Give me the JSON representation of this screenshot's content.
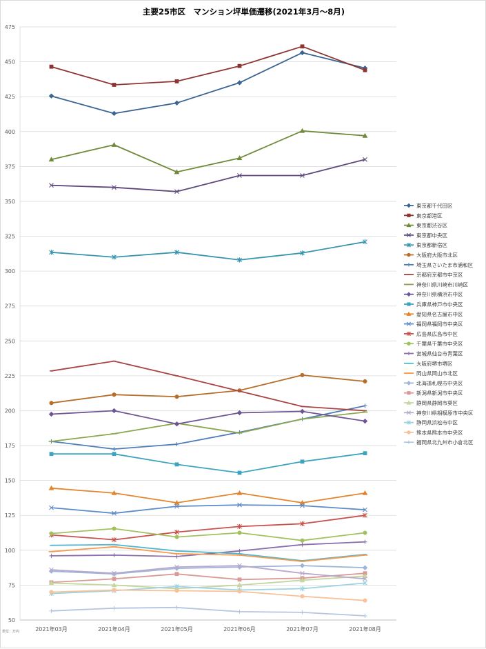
{
  "chart_data": {
    "type": "line",
    "title": "主要25市区　マンション坪単価遷移(2021年3月～8月)",
    "categories": [
      "2021年03月",
      "2021年04月",
      "2021年05月",
      "2021年06月",
      "2021年07月",
      "2021年08月"
    ],
    "xlabel": "",
    "ylabel": "",
    "ylim": [
      50,
      475
    ],
    "yticks": [
      50,
      75,
      100,
      125,
      150,
      175,
      200,
      225,
      250,
      275,
      300,
      325,
      350,
      375,
      400,
      425,
      450,
      475
    ],
    "grid": true,
    "legend_position": "right",
    "unit_note": "単位：万円",
    "series": [
      {
        "name": "東京都千代田区",
        "color": "#3B6493",
        "marker": "diamond",
        "values": [
          425.5,
          413.0,
          420.5,
          435.0,
          456.5,
          445.5
        ]
      },
      {
        "name": "東京都港区",
        "color": "#8E3532",
        "marker": "square",
        "values": [
          446.5,
          433.5,
          436.0,
          447.0,
          461.0,
          444.0
        ]
      },
      {
        "name": "東京都渋谷区",
        "color": "#6F8A3A",
        "marker": "triangle",
        "values": [
          380.0,
          390.5,
          371.0,
          381.0,
          400.5,
          397.0
        ]
      },
      {
        "name": "東京都中央区",
        "color": "#5D4A7A",
        "marker": "x",
        "values": [
          361.5,
          360.0,
          357.0,
          368.5,
          368.5,
          380.0
        ]
      },
      {
        "name": "東京都新宿区",
        "color": "#3795AD",
        "marker": "star",
        "values": [
          313.5,
          310.0,
          313.5,
          308.0,
          313.0,
          321.0
        ]
      },
      {
        "name": "大阪府大阪市北区",
        "color": "#B56F2B",
        "marker": "circle",
        "values": [
          205.5,
          211.5,
          210.0,
          214.5,
          225.5,
          221.0
        ]
      },
      {
        "name": "埼玉県さいたま市浦和区",
        "color": "#4E7DB8",
        "marker": "plus",
        "values": [
          178.0,
          172.5,
          176.0,
          184.5,
          194.0,
          203.5
        ]
      },
      {
        "name": "京都府京都市中京区",
        "color": "#A94442",
        "marker": "dash",
        "values": [
          228.5,
          235.5,
          225.0,
          214.0,
          203.0,
          200.0
        ]
      },
      {
        "name": "神奈川県川崎市川崎区",
        "color": "#8BA650",
        "marker": "longdash",
        "values": [
          178.0,
          183.5,
          191.0,
          184.0,
          194.0,
          199.0
        ]
      },
      {
        "name": "神奈川県横浜市中区",
        "color": "#6E5593",
        "marker": "diamond",
        "values": [
          197.5,
          200.0,
          190.5,
          198.5,
          199.5,
          192.5
        ]
      },
      {
        "name": "兵庫県神戸市中央区",
        "color": "#3EA4BE",
        "marker": "square",
        "values": [
          169.0,
          169.0,
          161.5,
          155.5,
          163.5,
          169.5
        ]
      },
      {
        "name": "愛知県名古屋市中区",
        "color": "#E2852E",
        "marker": "triangle",
        "values": [
          144.5,
          141.0,
          134.0,
          141.0,
          134.0,
          141.0
        ]
      },
      {
        "name": "福岡県福岡市中央区",
        "color": "#5C8ACB",
        "marker": "x",
        "values": [
          130.5,
          126.5,
          131.5,
          132.5,
          132.0,
          129.0
        ]
      },
      {
        "name": "広島県広島市中区",
        "color": "#C9504C",
        "marker": "star",
        "values": [
          111.0,
          107.5,
          113.0,
          117.0,
          119.0,
          125.0
        ]
      },
      {
        "name": "千葉県千葉市中央区",
        "color": "#A2C15E",
        "marker": "circle",
        "values": [
          112.0,
          115.5,
          109.5,
          112.5,
          107.0,
          112.5
        ]
      },
      {
        "name": "宮城県仙台市青葉区",
        "color": "#8A6EAD",
        "marker": "plus",
        "values": [
          96.0,
          96.5,
          95.5,
          99.5,
          104.0,
          106.0
        ]
      },
      {
        "name": "大阪府堺市堺区",
        "color": "#52B6CE",
        "marker": "dash",
        "values": [
          103.5,
          104.0,
          99.5,
          97.5,
          92.5,
          97.0
        ]
      },
      {
        "name": "岡山県岡山市北区",
        "color": "#F59A4E",
        "marker": "longdash",
        "values": [
          99.0,
          102.5,
          97.5,
          96.5,
          92.0,
          96.5
        ]
      },
      {
        "name": "北海道札幌市中央区",
        "color": "#9DB5D9",
        "marker": "diamond",
        "values": [
          85.0,
          83.0,
          87.0,
          88.0,
          89.0,
          87.5
        ]
      },
      {
        "name": "新潟県新潟市中央区",
        "color": "#D99A98",
        "marker": "square",
        "values": [
          77.0,
          79.5,
          83.0,
          79.0,
          80.0,
          83.5
        ]
      },
      {
        "name": "静岡県静岡市葵区",
        "color": "#C3D79E",
        "marker": "triangle",
        "values": [
          76.5,
          75.0,
          72.5,
          75.0,
          78.5,
          81.5
        ]
      },
      {
        "name": "神奈川県相模原市中央区",
        "color": "#B8A9CC",
        "marker": "x",
        "values": [
          86.0,
          83.5,
          88.0,
          89.0,
          83.5,
          79.5
        ]
      },
      {
        "name": "静岡県浜松市中区",
        "color": "#9CD3E0",
        "marker": "star",
        "values": [
          69.0,
          71.0,
          74.0,
          71.5,
          72.5,
          76.5
        ]
      },
      {
        "name": "熊本県熊本市中央区",
        "color": "#F8C198",
        "marker": "circle",
        "values": [
          70.0,
          71.5,
          71.0,
          70.5,
          67.0,
          64.0
        ]
      },
      {
        "name": "福岡県北九州市小倉北区",
        "color": "#B4C6DF",
        "marker": "plus",
        "values": [
          56.5,
          58.5,
          59.0,
          56.0,
          55.5,
          53.0
        ]
      }
    ]
  }
}
